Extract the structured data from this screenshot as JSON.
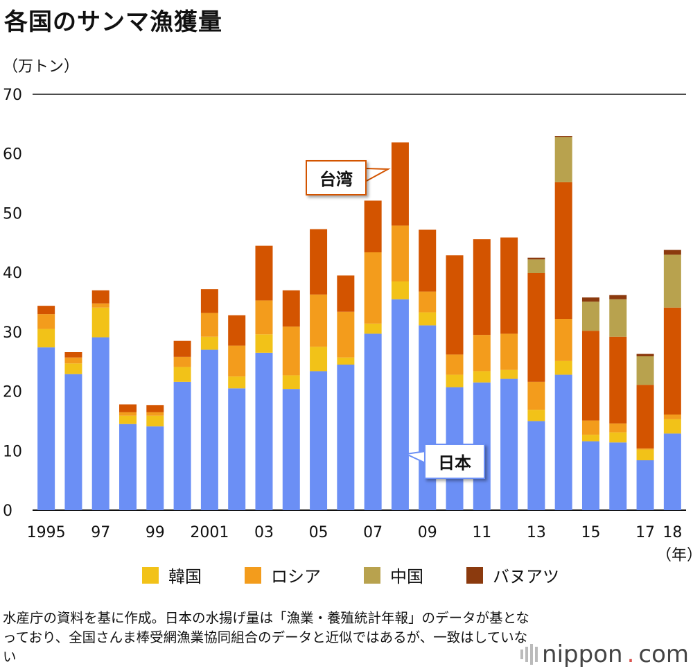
{
  "title": "各国のサンマ漁獲量",
  "unit_label": "（万トン）",
  "year_unit": "（年）",
  "note": "水産庁の資料を基に作成。日本の水揚げ量は「漁業・養殖統計年報」のデータが基となっており、全国さんま棒受網漁業協同組合のデータと近似ではあるが、一致はしていない",
  "logo": {
    "text": "nippon",
    "dot": ".",
    "suffix": "com"
  },
  "annotations": {
    "taiwan": "台湾",
    "japan": "日本"
  },
  "legend": [
    {
      "label": "韓国",
      "color": "#f2c218"
    },
    {
      "label": "ロシア",
      "color": "#f39c1c"
    },
    {
      "label": "中国",
      "color": "#b8a24e"
    },
    {
      "label": "バヌアツ",
      "color": "#8b3a0e"
    }
  ],
  "chart_data": {
    "type": "bar",
    "stacked": true,
    "categories": [
      "1995",
      "1996",
      "1997",
      "1998",
      "1999",
      "2000",
      "2001",
      "2002",
      "2003",
      "2004",
      "2005",
      "2006",
      "2007",
      "2008",
      "2009",
      "2010",
      "2011",
      "2012",
      "2013",
      "2014",
      "2015",
      "2016",
      "2017",
      "2018"
    ],
    "tick_labels": [
      "1995",
      "",
      "97",
      "",
      "99",
      "",
      "2001",
      "",
      "03",
      "",
      "05",
      "",
      "07",
      "",
      "09",
      "",
      "11",
      "",
      "13",
      "",
      "15",
      "",
      "17",
      "18"
    ],
    "ylim": [
      0,
      70
    ],
    "yticks": [
      0,
      10,
      20,
      30,
      40,
      50,
      60,
      70
    ],
    "series": [
      {
        "name": "日本",
        "color": "#6b8ff5",
        "values": [
          27.4,
          22.9,
          29.1,
          14.5,
          14.1,
          21.6,
          27.0,
          20.5,
          26.5,
          20.4,
          23.4,
          24.5,
          29.7,
          35.5,
          31.1,
          20.7,
          21.5,
          22.1,
          15.0,
          22.8,
          11.6,
          11.4,
          8.4,
          12.9
        ]
      },
      {
        "name": "韓国",
        "color": "#f2c218",
        "values": [
          3.1,
          1.8,
          5.0,
          1.4,
          1.8,
          2.5,
          2.2,
          2.0,
          3.1,
          2.3,
          4.1,
          1.2,
          1.7,
          3.0,
          2.2,
          2.1,
          1.9,
          1.5,
          1.9,
          2.3,
          1.1,
          1.7,
          1.8,
          2.4
        ]
      },
      {
        "name": "ロシア",
        "color": "#f39c1c",
        "values": [
          2.5,
          1.0,
          0.7,
          0.6,
          0.6,
          1.7,
          4.0,
          5.2,
          5.7,
          8.2,
          8.8,
          7.7,
          12.0,
          9.4,
          3.5,
          3.4,
          6.1,
          6.1,
          4.7,
          7.1,
          2.4,
          1.5,
          0.2,
          0.8
        ]
      },
      {
        "name": "台湾",
        "color": "#d35400",
        "values": [
          1.4,
          0.9,
          2.2,
          1.3,
          1.2,
          2.7,
          4.0,
          5.1,
          9.2,
          6.1,
          11.0,
          6.1,
          8.7,
          14.0,
          10.4,
          16.7,
          16.1,
          16.2,
          18.3,
          23.0,
          15.1,
          14.6,
          10.7,
          18.0
        ]
      },
      {
        "name": "中国",
        "color": "#b8a24e",
        "values": [
          0,
          0,
          0,
          0,
          0,
          0,
          0,
          0,
          0,
          0,
          0,
          0,
          0,
          0,
          0,
          0,
          0,
          0,
          2.3,
          7.6,
          4.9,
          6.3,
          4.8,
          8.9
        ]
      },
      {
        "name": "バヌアツ",
        "color": "#8b3a0e",
        "values": [
          0,
          0,
          0,
          0,
          0,
          0,
          0,
          0,
          0,
          0,
          0,
          0,
          0,
          0,
          0,
          0,
          0,
          0,
          0.3,
          0.2,
          0.7,
          0.7,
          0.4,
          0.8
        ]
      }
    ]
  }
}
